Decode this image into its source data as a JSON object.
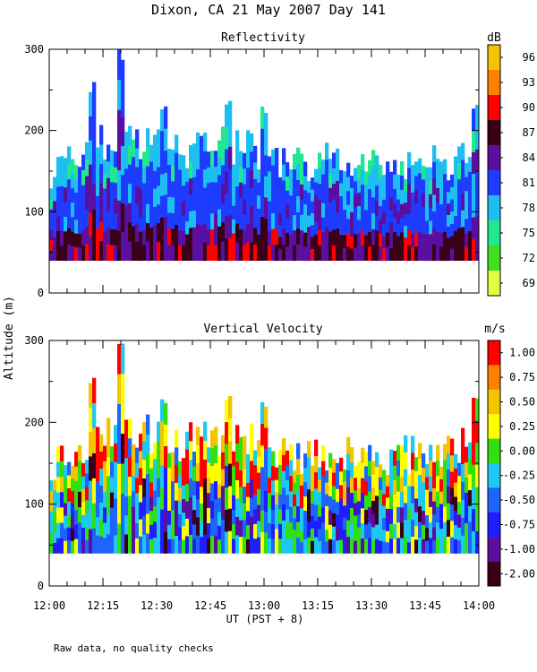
{
  "title": "Dixon, CA 21 May 2007  Day 141",
  "shared_ylabel": "Altitude (m)",
  "xlabel": "UT  (PST + 8)",
  "footer_note": "Raw data, no quality checks",
  "chart_data": [
    {
      "type": "heatmap",
      "title": "Reflectivity",
      "x_ticks": [
        "12:00",
        "12:15",
        "12:30",
        "12:45",
        "13:00",
        "13:15",
        "13:30",
        "13:45",
        "14:00"
      ],
      "xlim_minutes": [
        0,
        120
      ],
      "y_ticks": [
        0,
        100,
        200,
        300
      ],
      "ylim": [
        0,
        300
      ],
      "data_floor_m": 40,
      "colorbar": {
        "unit": "dB",
        "labels": [
          "96",
          "93",
          "90",
          "87",
          "84",
          "81",
          "78",
          "75",
          "72",
          "69"
        ],
        "colors": [
          "#f5c400",
          "#ff7f00",
          "#ff0000",
          "#3a0018",
          "#5a0fa0",
          "#1e3cff",
          "#1fbef0",
          "#1fe890",
          "#40e020",
          "#e0ff40"
        ]
      },
      "series": [
        {
          "name": "typical_echo_top_m",
          "time_minutes": [
            0,
            10,
            20,
            30,
            40,
            50,
            60,
            70,
            80,
            90,
            100,
            110,
            120
          ],
          "values": [
            140,
            175,
            200,
            180,
            175,
            185,
            170,
            160,
            160,
            160,
            160,
            160,
            175
          ]
        },
        {
          "name": "peak_echo_top_m",
          "time_minutes": [
            3,
            12,
            20,
            32,
            50,
            60,
            119
          ],
          "values": [
            180,
            260,
            300,
            230,
            240,
            230,
            240
          ]
        }
      ]
    },
    {
      "type": "heatmap",
      "title": "Vertical Velocity",
      "x_ticks": [
        "12:00",
        "12:15",
        "12:30",
        "12:45",
        "13:00",
        "13:15",
        "13:30",
        "13:45",
        "14:00"
      ],
      "xlim_minutes": [
        0,
        120
      ],
      "y_ticks": [
        0,
        100,
        200,
        300
      ],
      "ylim": [
        0,
        300
      ],
      "data_floor_m": 40,
      "colorbar": {
        "unit": "m/s",
        "labels": [
          "1.00",
          "0.75",
          "0.50",
          "0.25",
          "0.00",
          "-0.25",
          "-0.50",
          "-0.75",
          "-1.00",
          "-2.00"
        ],
        "colors": [
          "#ff0000",
          "#ff7f00",
          "#f5c400",
          "#ffff00",
          "#30e010",
          "#1ec8f0",
          "#1e64ff",
          "#1e1eff",
          "#5a0fa0",
          "#3a0018"
        ]
      },
      "series": [
        {
          "name": "typical_echo_top_m",
          "time_minutes": [
            0,
            10,
            20,
            30,
            40,
            50,
            60,
            70,
            80,
            90,
            100,
            110,
            120
          ],
          "values": [
            140,
            175,
            200,
            180,
            175,
            185,
            170,
            160,
            160,
            160,
            160,
            160,
            175
          ]
        },
        {
          "name": "peak_echo_top_m",
          "time_minutes": [
            3,
            12,
            20,
            32,
            50,
            60,
            119
          ],
          "values": [
            180,
            260,
            300,
            230,
            240,
            230,
            240
          ]
        }
      ]
    }
  ]
}
